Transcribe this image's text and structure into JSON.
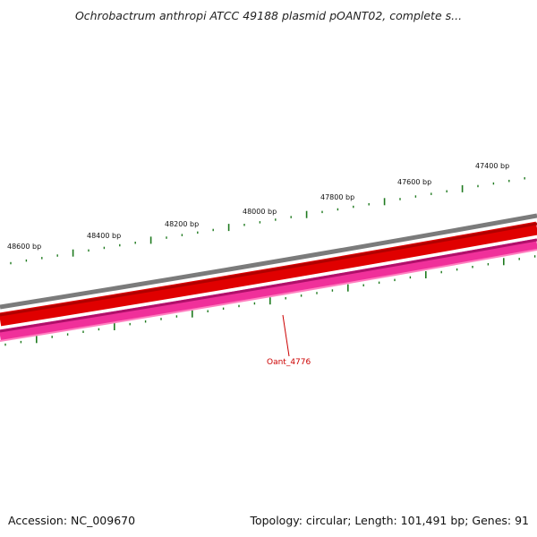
{
  "title": "Ochrobactrum anthropi ATCC 49188 plasmid pOANT02, complete s...",
  "footer": {
    "accession": "Accession: NC_009670",
    "summary": "Topology: circular; Length: 101,491 bp; Genes: 91"
  },
  "colors": {
    "backbone": "#7b7b7b",
    "forward_cds": "#e00000",
    "forward_cds_dark": "#b00000",
    "reverse_cds": "#f0309a",
    "reverse_cds_dark": "#b0106a",
    "reverse_cds_light": "#ff80c0",
    "ticks": "#1f7a1f",
    "gene_label": "#cc0000"
  },
  "scale_labels": [
    {
      "bp": 48600,
      "text": "48600 bp"
    },
    {
      "bp": 48400,
      "text": "48400 bp"
    },
    {
      "bp": 48200,
      "text": "48200 bp"
    },
    {
      "bp": 48000,
      "text": "48000 bp"
    },
    {
      "bp": 47800,
      "text": "47800 bp"
    },
    {
      "bp": 47600,
      "text": "47600 bp"
    },
    {
      "bp": 47400,
      "text": "47400 bp"
    }
  ],
  "gene_labels": [
    {
      "text": "Oant_4776"
    }
  ]
}
